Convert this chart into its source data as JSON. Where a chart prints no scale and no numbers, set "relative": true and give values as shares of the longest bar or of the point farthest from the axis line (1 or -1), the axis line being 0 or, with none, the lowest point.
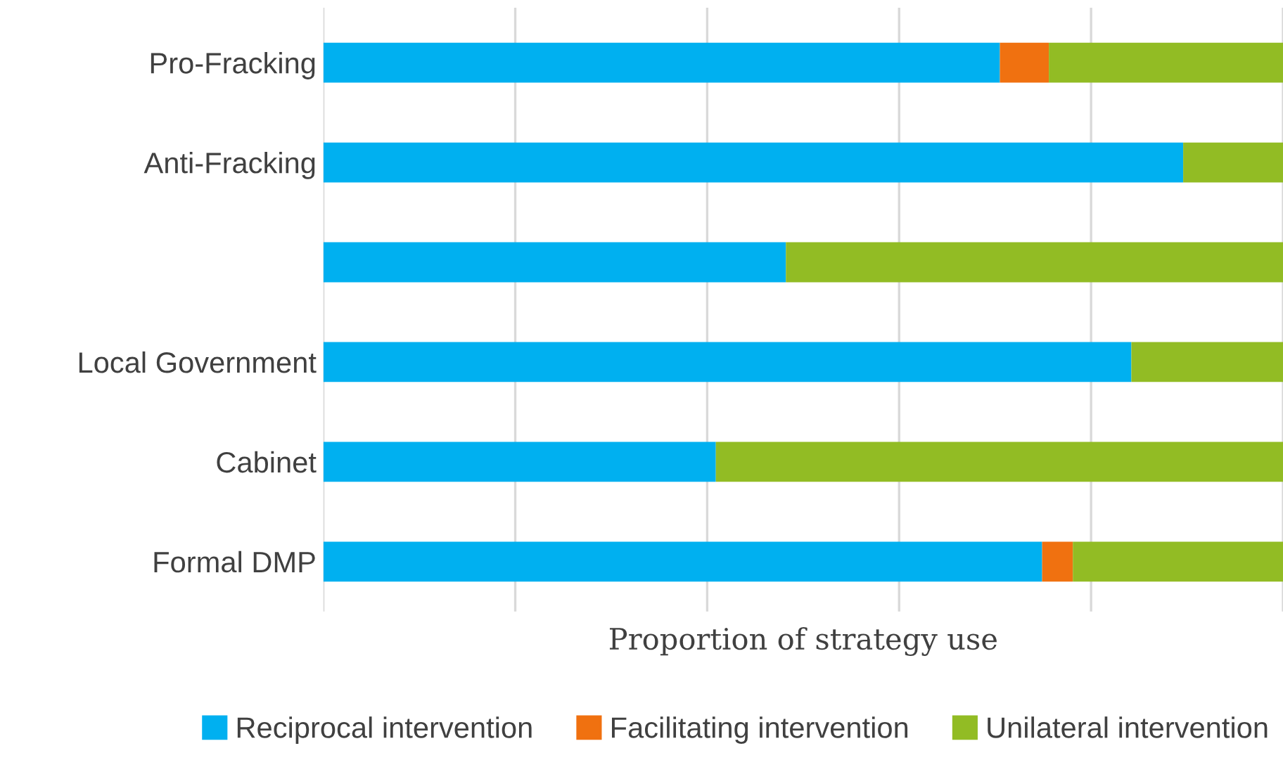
{
  "chart_data": {
    "type": "bar",
    "orientation": "horizontal",
    "stacked": true,
    "relative": true,
    "categories": [
      "Pro-Fracking",
      "Anti-Fracking",
      null,
      "Local Government",
      "Cabinet",
      "Formal DMP"
    ],
    "xlabel": "Proportion of strategy use",
    "series": [
      {
        "name": "Reciprocal intervention",
        "color": "#00b0f0",
        "values": [
          0.705,
          0.896,
          0.482,
          0.842,
          0.409,
          0.749
        ]
      },
      {
        "name": "Facilitating intervention",
        "color": "#f07110",
        "values": [
          0.051,
          0,
          0,
          0,
          0,
          0.032
        ]
      },
      {
        "name": "Unilateral intervention",
        "color": "#92bc24",
        "values": [
          0.244,
          0.104,
          0.518,
          0.158,
          0.591,
          0.219
        ]
      }
    ],
    "grid": "x",
    "legend": "bottom"
  }
}
